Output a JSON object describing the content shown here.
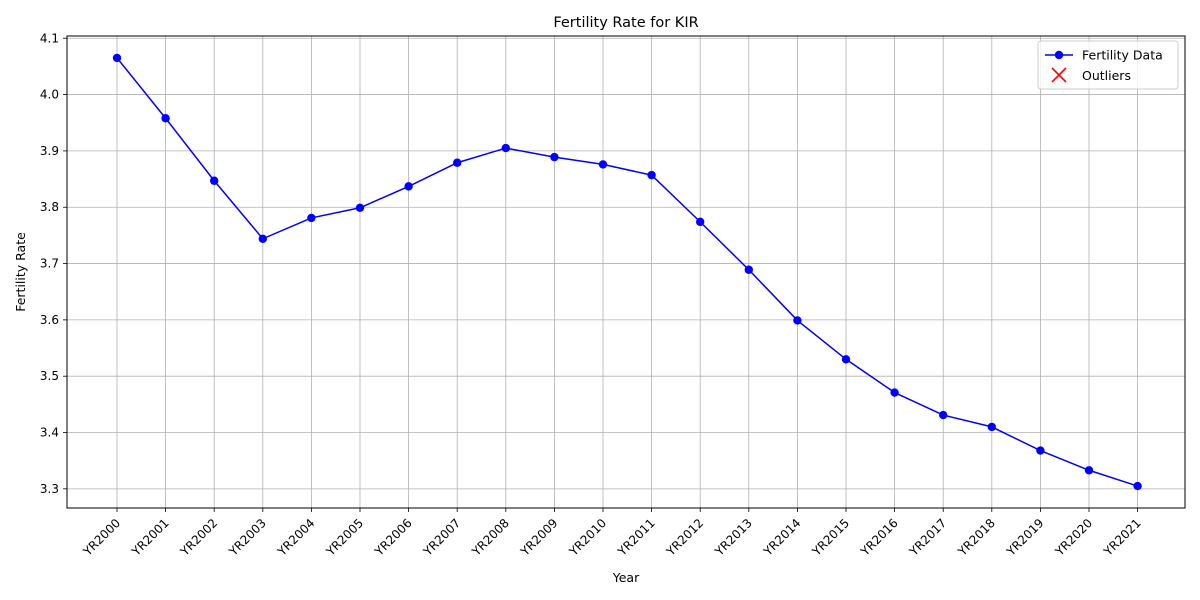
{
  "chart_data": {
    "type": "line",
    "title": "Fertility Rate for KIR",
    "xlabel": "Year",
    "ylabel": "Fertility Rate",
    "categories": [
      "YR2000",
      "YR2001",
      "YR2002",
      "YR2003",
      "YR2004",
      "YR2005",
      "YR2006",
      "YR2007",
      "YR2008",
      "YR2009",
      "YR2010",
      "YR2011",
      "YR2012",
      "YR2013",
      "YR2014",
      "YR2015",
      "YR2016",
      "YR2017",
      "YR2018",
      "YR2019",
      "YR2020",
      "YR2021"
    ],
    "series": [
      {
        "name": "Fertility Data",
        "color": "#0000ff",
        "values": [
          4.065,
          3.958,
          3.847,
          3.744,
          3.781,
          3.799,
          3.837,
          3.879,
          3.905,
          3.889,
          3.876,
          3.857,
          3.774,
          3.689,
          3.599,
          3.53,
          3.471,
          3.431,
          3.41,
          3.368,
          3.333,
          3.305
        ]
      }
    ],
    "outliers": {
      "name": "Outliers",
      "color": "#ff0000",
      "points": []
    },
    "ylim": [
      3.266,
      4.104
    ],
    "yticks": [
      "3.3",
      "3.4",
      "3.5",
      "3.6",
      "3.7",
      "3.8",
      "3.9",
      "4.0",
      "4.1"
    ],
    "grid": true,
    "legend_position": "upper right"
  }
}
